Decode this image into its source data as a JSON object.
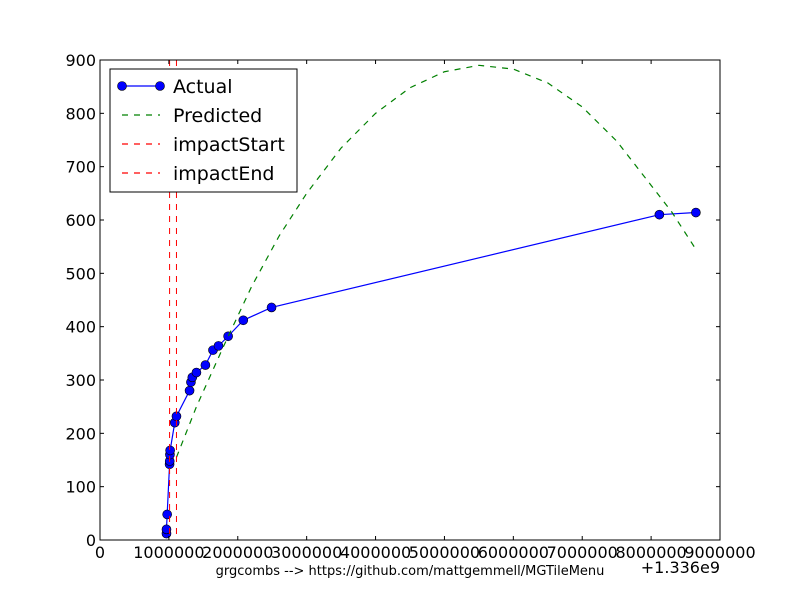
{
  "chart_data": {
    "type": "line",
    "xlabel": "grgcombs --> https://github.com/mattgemmell/MGTileMenu",
    "ylabel": "",
    "x_offset_label": "+1.336e9",
    "xlim": [
      0,
      9000000
    ],
    "ylim": [
      0,
      900
    ],
    "x_ticks": [
      0,
      1000000,
      2000000,
      3000000,
      4000000,
      5000000,
      6000000,
      7000000,
      8000000,
      9000000
    ],
    "x_tick_labels": [
      "0",
      "1000000",
      "2000000",
      "3000000",
      "4000000",
      "5000000",
      "6000000",
      "7000000",
      "8000000",
      "9000000"
    ],
    "y_ticks": [
      0,
      100,
      200,
      300,
      400,
      500,
      600,
      700,
      800,
      900
    ],
    "y_tick_labels": [
      "0",
      "100",
      "200",
      "300",
      "400",
      "500",
      "600",
      "700",
      "800",
      "900"
    ],
    "grid": false,
    "legend_position": "top-left",
    "series": [
      {
        "name": "Actual",
        "style": "solid-markers",
        "color": "#0000ff",
        "points": [
          [
            965000,
            12
          ],
          [
            965000,
            20
          ],
          [
            975000,
            48
          ],
          [
            1010000,
            142
          ],
          [
            1012000,
            148
          ],
          [
            1015000,
            160
          ],
          [
            1018000,
            168
          ],
          [
            1085000,
            220
          ],
          [
            1110000,
            232
          ],
          [
            1300000,
            280
          ],
          [
            1320000,
            296
          ],
          [
            1340000,
            305
          ],
          [
            1400000,
            314
          ],
          [
            1530000,
            328
          ],
          [
            1640000,
            356
          ],
          [
            1720000,
            364
          ],
          [
            1860000,
            382
          ],
          [
            2080000,
            412
          ],
          [
            2490000,
            436
          ],
          [
            8120000,
            610
          ],
          [
            8650000,
            614
          ]
        ]
      },
      {
        "name": "Predicted",
        "style": "dashed",
        "color": "#008000",
        "points": [
          [
            1110000,
            155
          ],
          [
            1400000,
            250
          ],
          [
            1800000,
            365
          ],
          [
            2200000,
            475
          ],
          [
            2600000,
            570
          ],
          [
            3000000,
            650
          ],
          [
            3500000,
            735
          ],
          [
            4000000,
            800
          ],
          [
            4500000,
            848
          ],
          [
            5000000,
            878
          ],
          [
            5500000,
            890
          ],
          [
            6000000,
            883
          ],
          [
            6500000,
            857
          ],
          [
            7000000,
            812
          ],
          [
            7500000,
            748
          ],
          [
            8000000,
            665
          ],
          [
            8300000,
            615
          ],
          [
            8650000,
            545
          ]
        ]
      },
      {
        "name": "impactStart",
        "style": "dashed-vertical",
        "color": "#ff0000",
        "x": 1010000
      },
      {
        "name": "impactEnd",
        "style": "dashed-vertical",
        "color": "#ff0000",
        "x": 1110000
      }
    ]
  }
}
